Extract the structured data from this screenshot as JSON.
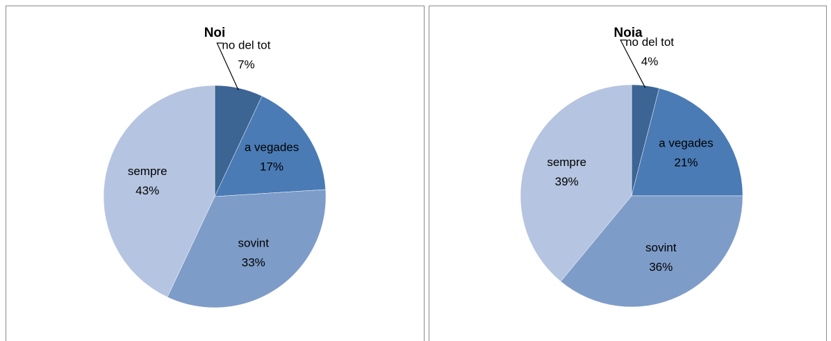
{
  "chart_data": [
    {
      "type": "pie",
      "title": "Noi",
      "categories": [
        "no del tot",
        "a vegades",
        "sovint",
        "sempre"
      ],
      "values": [
        7,
        17,
        33,
        43
      ],
      "value_labels": [
        "7%",
        "17%",
        "33%",
        "43%"
      ],
      "colors": [
        "#3c6594",
        "#4a7bb5",
        "#7e9cc8",
        "#b5c4e0"
      ]
    },
    {
      "type": "pie",
      "title": "Noia",
      "categories": [
        "no del tot",
        "a vegades",
        "sovint",
        "sempre"
      ],
      "values": [
        4,
        21,
        36,
        39
      ],
      "value_labels": [
        "4%",
        "21%",
        "36%",
        "39%"
      ],
      "colors": [
        "#3c6594",
        "#4a7bb5",
        "#7e9cc8",
        "#b5c4e0"
      ]
    }
  ]
}
